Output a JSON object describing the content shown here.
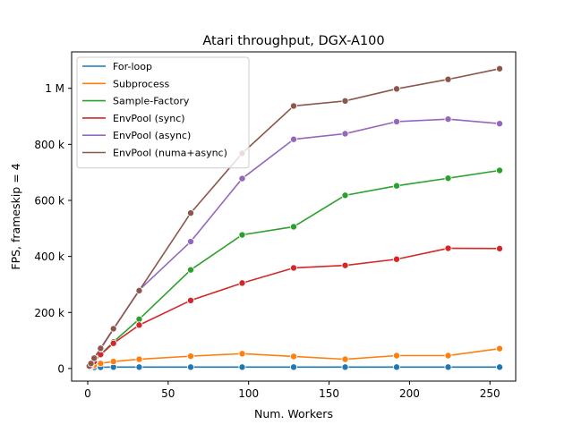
{
  "chart_data": {
    "type": "line",
    "title": "Atari throughput, DGX-A100",
    "xlabel": "Num. Workers",
    "ylabel": "FPS, frameskip = 4",
    "xlim": [
      -10,
      266
    ],
    "ylim": [
      -45000,
      1130000
    ],
    "xticks": [
      0,
      50,
      100,
      150,
      200,
      250
    ],
    "xtick_labels": [
      "0",
      "50",
      "100",
      "150",
      "200",
      "250"
    ],
    "yticks": [
      0,
      200000,
      400000,
      600000,
      800000,
      1000000
    ],
    "ytick_labels": [
      "0",
      "200 k",
      "400 k",
      "600 k",
      "800 k",
      "1 M"
    ],
    "grid": false,
    "legend_position": "upper left",
    "series": [
      {
        "name": "For-loop",
        "color": "#1f77b4",
        "marker": "circle",
        "x": [
          1,
          2,
          4,
          8,
          16,
          32,
          64,
          96,
          128,
          160,
          192,
          224,
          256
        ],
        "y": [
          2000,
          3000,
          4000,
          4500,
          5000,
          5000,
          5000,
          5000,
          5000,
          5000,
          5000,
          5000,
          5000
        ]
      },
      {
        "name": "Subprocess",
        "color": "#ff7f0e",
        "marker": "circle",
        "x": [
          1,
          2,
          4,
          8,
          16,
          32,
          64,
          96,
          128,
          160,
          192,
          224,
          256
        ],
        "y": [
          3000,
          6000,
          11000,
          18000,
          25000,
          33000,
          44000,
          53000,
          43000,
          33000,
          46000,
          46000,
          71000
        ]
      },
      {
        "name": "Sample-Factory",
        "color": "#2ca02c",
        "marker": "circle",
        "x": [
          1,
          2,
          4,
          8,
          16,
          32,
          64,
          96,
          128,
          160,
          192,
          224,
          256
        ],
        "y": [
          6000,
          12000,
          25000,
          50000,
          95000,
          176000,
          352000,
          477000,
          506000,
          618000,
          652000,
          679000,
          707000
        ]
      },
      {
        "name": "EnvPool (sync)",
        "color": "#d62728",
        "marker": "circle",
        "x": [
          1,
          2,
          4,
          8,
          16,
          32,
          64,
          96,
          128,
          160,
          192,
          224,
          256
        ],
        "y": [
          6000,
          12000,
          25000,
          50000,
          90000,
          155000,
          243000,
          305000,
          359000,
          368000,
          390000,
          429000,
          428000
        ]
      },
      {
        "name": "EnvPool (async)",
        "color": "#9467bd",
        "marker": "circle",
        "x": [
          1,
          2,
          4,
          8,
          16,
          32,
          64,
          96,
          128,
          160,
          192,
          224,
          256
        ],
        "y": [
          9000,
          18000,
          37000,
          70000,
          140000,
          280000,
          453000,
          678000,
          818000,
          838000,
          881000,
          890000,
          874000
        ]
      },
      {
        "name": "EnvPool (numa+async)",
        "color": "#8c564b",
        "marker": "circle",
        "x": [
          1,
          2,
          4,
          8,
          16,
          32,
          64,
          96,
          128,
          160,
          192,
          224,
          256
        ],
        "y": [
          9000,
          18000,
          37000,
          72000,
          142000,
          278000,
          555000,
          768000,
          937000,
          955000,
          998000,
          1032000,
          1070000
        ]
      }
    ]
  }
}
